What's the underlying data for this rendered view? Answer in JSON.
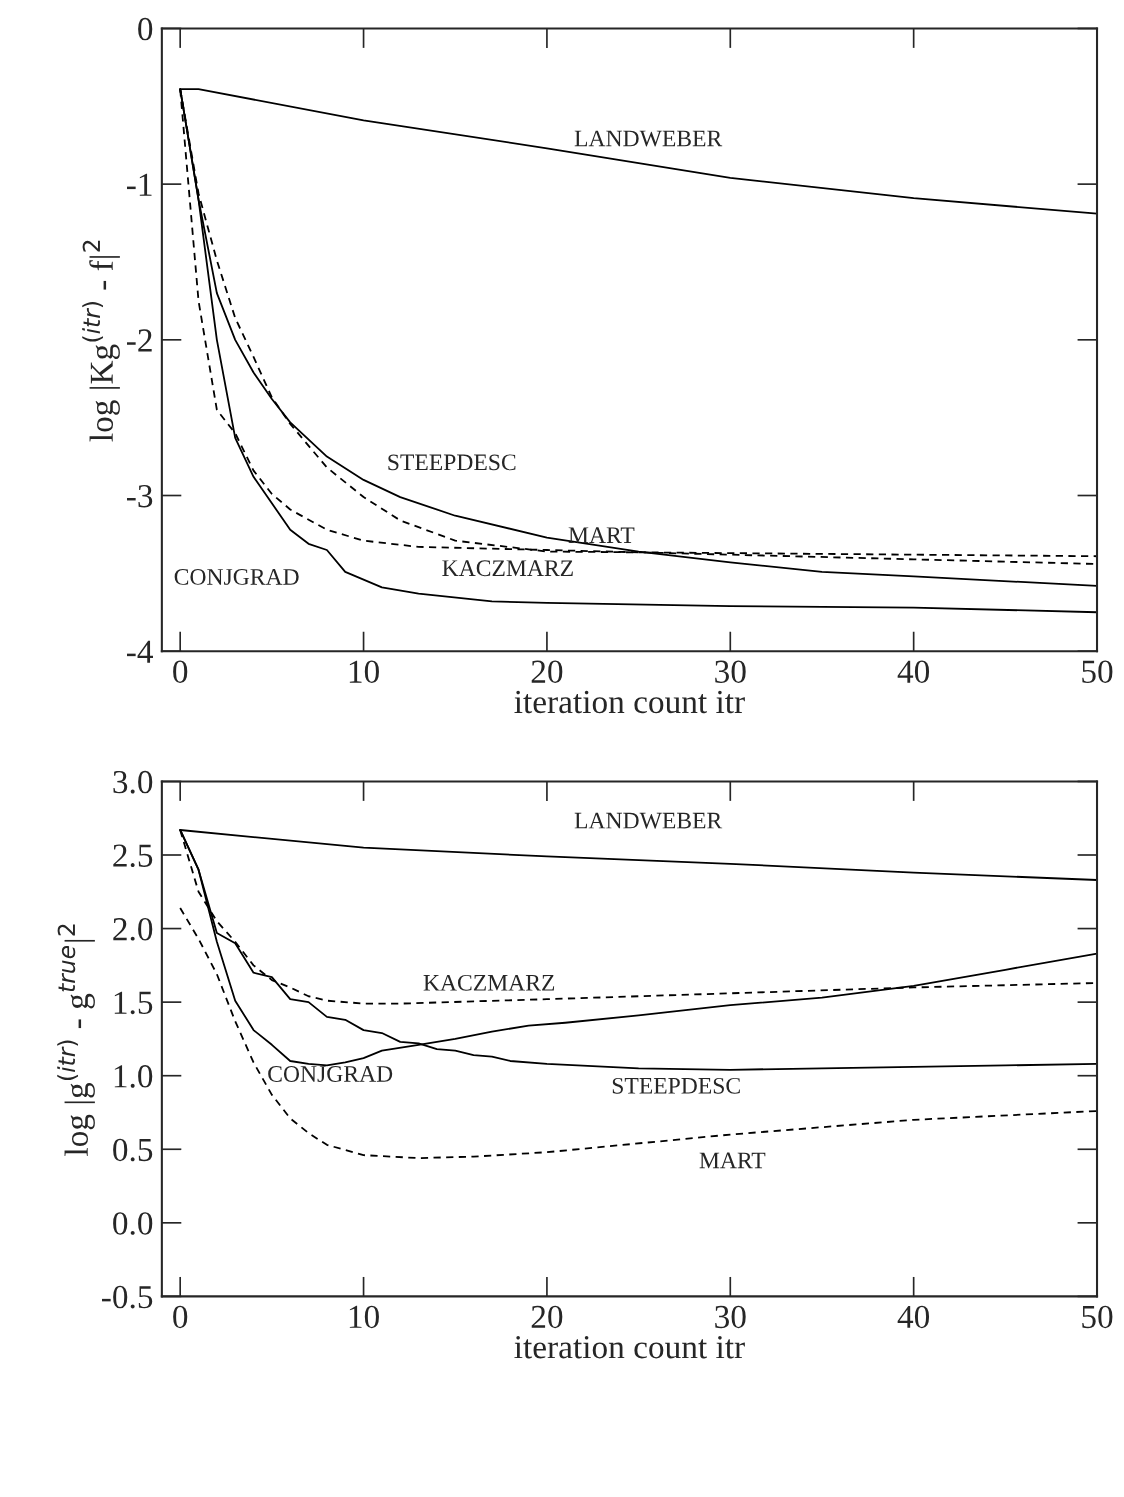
{
  "chart_data": [
    {
      "type": "line",
      "xlabel": "iteration count itr",
      "ylabel": "log |Kg$^{(itr)}$ - f|$^{2}$",
      "xlim": [
        -1,
        50
      ],
      "xticks": [
        0,
        10,
        20,
        30,
        40,
        50
      ],
      "ylim": [
        -4,
        0
      ],
      "yticks": [
        {
          "value": -4,
          "label": "-4"
        },
        {
          "value": -3,
          "label": "-3"
        },
        {
          "value": -2,
          "label": "-2"
        },
        {
          "value": -1,
          "label": "-1"
        },
        0
      ],
      "grid": false,
      "legend": false,
      "series": [
        {
          "name": "LANDWEBER",
          "color": "#000000",
          "line_style": "solid",
          "x": [
            0,
            1,
            10,
            20,
            30,
            40,
            50
          ],
          "values": [
            -0.39,
            -0.39,
            -0.59,
            -0.77,
            -0.96,
            -1.09,
            -1.19
          ]
        },
        {
          "name": "CONJGRAD",
          "color": "#000000",
          "line_style": "solid",
          "x": [
            0,
            1,
            2,
            3,
            4,
            5,
            6,
            7,
            8,
            9,
            11,
            13,
            17,
            20,
            30,
            40,
            50
          ],
          "values": [
            -0.39,
            -1.1,
            -2.0,
            -2.63,
            -2.88,
            -3.05,
            -3.22,
            -3.31,
            -3.35,
            -3.49,
            -3.59,
            -3.63,
            -3.68,
            -3.69,
            -3.71,
            -3.72,
            -3.75
          ]
        },
        {
          "name": "STEEPDESC",
          "color": "#000000",
          "line_style": "solid",
          "x": [
            0,
            1,
            2,
            3,
            4,
            5,
            6,
            8,
            10,
            12,
            15,
            20,
            25,
            30,
            35,
            40,
            50
          ],
          "values": [
            -0.39,
            -1.1,
            -1.7,
            -2.0,
            -2.21,
            -2.38,
            -2.53,
            -2.75,
            -2.9,
            -3.01,
            -3.13,
            -3.27,
            -3.36,
            -3.43,
            -3.49,
            -3.52,
            -3.58
          ]
        },
        {
          "name": "MART",
          "color": "#000000",
          "line_style": "dashed",
          "x": [
            0,
            1,
            2,
            3,
            4,
            5,
            6,
            8,
            10,
            12,
            15,
            20,
            30,
            40,
            50
          ],
          "values": [
            -0.39,
            -1.06,
            -1.49,
            -1.86,
            -2.11,
            -2.37,
            -2.54,
            -2.82,
            -3.01,
            -3.16,
            -3.29,
            -3.36,
            -3.37,
            -3.38,
            -3.39
          ]
        },
        {
          "name": "KACZMARZ",
          "color": "#000000",
          "line_style": "dashed",
          "x": [
            0,
            1,
            2,
            3,
            4,
            5,
            6,
            8,
            10,
            13,
            20,
            30,
            40,
            50
          ],
          "values": [
            -0.39,
            -1.75,
            -2.45,
            -2.6,
            -2.84,
            -2.99,
            -3.09,
            -3.22,
            -3.29,
            -3.33,
            -3.35,
            -3.38,
            -3.41,
            -3.44
          ]
        }
      ]
    },
    {
      "type": "line",
      "xlabel": "iteration count itr",
      "ylabel": "log |g$^{(itr)}$ - g$^{true}$|$^{2}$",
      "xlim": [
        -1,
        50
      ],
      "xticks": [
        0,
        10,
        20,
        30,
        40,
        50
      ],
      "ylim": [
        -0.5,
        3.0
      ],
      "yticks": [
        {
          "value": -0.5,
          "label": "-0.5"
        },
        {
          "value": 0,
          "label": "0.0"
        },
        {
          "value": 0.5,
          "label": "0.5"
        },
        {
          "value": 1,
          "label": "1.0"
        },
        {
          "value": 1.5,
          "label": "1.5"
        },
        {
          "value": 2,
          "label": "2.0"
        },
        {
          "value": 2.5,
          "label": "2.5"
        },
        {
          "value": 3,
          "label": "3.0"
        }
      ],
      "grid": false,
      "legend": false,
      "series": [
        {
          "name": "LANDWEBER",
          "color": "#000000",
          "line_style": "solid",
          "x": [
            0,
            10,
            20,
            30,
            40,
            50
          ],
          "values": [
            2.67,
            2.55,
            2.49,
            2.44,
            2.38,
            2.33
          ]
        },
        {
          "name": "CONJGRAD",
          "color": "#000000",
          "line_style": "solid",
          "x": [
            0,
            1,
            2,
            3,
            4,
            5,
            6,
            7,
            8,
            9,
            10,
            11,
            13,
            15,
            17,
            19,
            21,
            25,
            30,
            35,
            40,
            45,
            50
          ],
          "values": [
            2.67,
            2.4,
            1.91,
            1.51,
            1.31,
            1.21,
            1.1,
            1.08,
            1.07,
            1.09,
            1.12,
            1.17,
            1.21,
            1.25,
            1.3,
            1.34,
            1.36,
            1.41,
            1.48,
            1.53,
            1.61,
            1.72,
            1.83
          ]
        },
        {
          "name": "STEEPDESC",
          "color": "#000000",
          "line_style": "solid",
          "x": [
            0,
            1,
            2,
            3,
            4,
            5,
            6,
            7,
            8,
            9,
            10,
            11,
            12,
            13,
            14,
            15,
            16,
            17,
            18,
            20,
            25,
            30,
            35,
            40,
            45,
            50
          ],
          "values": [
            2.67,
            2.4,
            1.97,
            1.9,
            1.7,
            1.67,
            1.52,
            1.5,
            1.4,
            1.38,
            1.31,
            1.29,
            1.23,
            1.22,
            1.18,
            1.17,
            1.14,
            1.13,
            1.1,
            1.08,
            1.05,
            1.04,
            1.05,
            1.06,
            1.07,
            1.08
          ]
        },
        {
          "name": "KACZMARZ",
          "color": "#000000",
          "line_style": "dashed",
          "x": [
            0,
            1,
            2,
            3,
            4,
            5,
            6,
            7,
            8,
            10,
            12,
            20,
            30,
            40,
            50
          ],
          "values": [
            2.67,
            2.25,
            2.05,
            1.91,
            1.75,
            1.65,
            1.6,
            1.54,
            1.51,
            1.49,
            1.49,
            1.52,
            1.56,
            1.6,
            1.63
          ]
        },
        {
          "name": "MART",
          "color": "#000000",
          "line_style": "dashed",
          "x": [
            0,
            1,
            2,
            3,
            4,
            5,
            6,
            7,
            8,
            10,
            13,
            16,
            20,
            30,
            40,
            50
          ],
          "values": [
            2.14,
            1.93,
            1.69,
            1.37,
            1.09,
            0.87,
            0.71,
            0.61,
            0.53,
            0.46,
            0.44,
            0.45,
            0.48,
            0.6,
            0.7,
            0.76
          ]
        }
      ]
    }
  ]
}
